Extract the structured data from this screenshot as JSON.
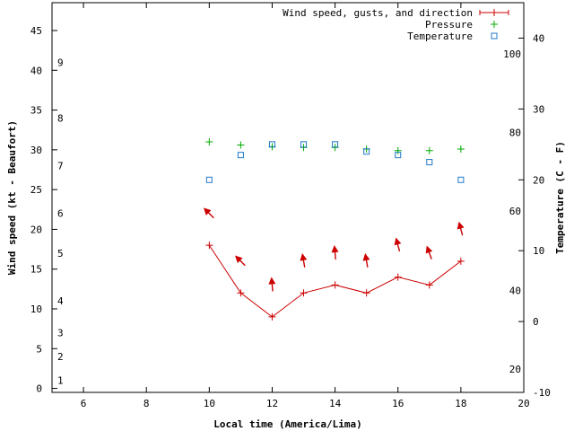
{
  "chart_data": {
    "type": "line",
    "xlabel": "Local time (America/Lima)",
    "ylabel": "Wind speed (kt - Beaufort)",
    "y2label": "Temperature (C - F)",
    "xlim": [
      5,
      20
    ],
    "ylim": [
      -0.5,
      48.5
    ],
    "y2lim": [
      -10,
      45
    ],
    "x_ticks": [
      6,
      8,
      10,
      12,
      14,
      16,
      18,
      20
    ],
    "y_ticks": [
      0,
      5,
      10,
      15,
      20,
      25,
      30,
      35,
      40,
      45
    ],
    "y2_ticks": [
      -10,
      0,
      10,
      20,
      30,
      40
    ],
    "beaufort_labels": [
      {
        "label": "1",
        "kt": 1
      },
      {
        "label": "2",
        "kt": 4
      },
      {
        "label": "3",
        "kt": 7
      },
      {
        "label": "4",
        "kt": 11
      },
      {
        "label": "5",
        "kt": 17
      },
      {
        "label": "6",
        "kt": 22
      },
      {
        "label": "7",
        "kt": 28
      },
      {
        "label": "8",
        "kt": 34
      },
      {
        "label": "9",
        "kt": 41
      }
    ],
    "fahrenheit_labels": [
      {
        "label": "20",
        "c": -6.7
      },
      {
        "label": "40",
        "c": 4.4
      },
      {
        "label": "60",
        "c": 15.6
      },
      {
        "label": "80",
        "c": 26.7
      },
      {
        "label": "100",
        "c": 37.8
      }
    ],
    "legend": [
      {
        "name": "Wind speed, gusts, and direction",
        "color": "#cc0000",
        "marker": "errorbar"
      },
      {
        "name": "Pressure",
        "color": "#00aa00",
        "marker": "plus"
      },
      {
        "name": "Temperature",
        "color": "#1f78c8",
        "marker": "square"
      }
    ],
    "series": [
      {
        "name": "Wind speed, gusts, and direction",
        "color": "#cc0000",
        "x": [
          10,
          11,
          12,
          13,
          14,
          15,
          16,
          17,
          18
        ],
        "values": [
          18,
          12,
          9,
          12,
          13,
          12,
          14,
          13,
          16
        ],
        "direction_deg": [
          135,
          135,
          175,
          170,
          175,
          170,
          165,
          160,
          165
        ],
        "arrow_kt": [
          22,
          16,
          13,
          16,
          17,
          16,
          18,
          17,
          20
        ]
      },
      {
        "name": "Pressure",
        "color": "#00aa00",
        "x": [
          10,
          11,
          12,
          13,
          14,
          15,
          16,
          17,
          18
        ],
        "values": [
          31,
          30.6,
          30.4,
          30.3,
          30.3,
          30.1,
          29.9,
          29.9,
          30.1
        ]
      },
      {
        "name": "Temperature",
        "color": "#1f78c8",
        "x": [
          10,
          11,
          12,
          13,
          14,
          15,
          16,
          17,
          18
        ],
        "values": [
          20,
          23.5,
          25,
          25,
          25,
          24,
          23.5,
          22.5,
          20
        ]
      }
    ]
  }
}
